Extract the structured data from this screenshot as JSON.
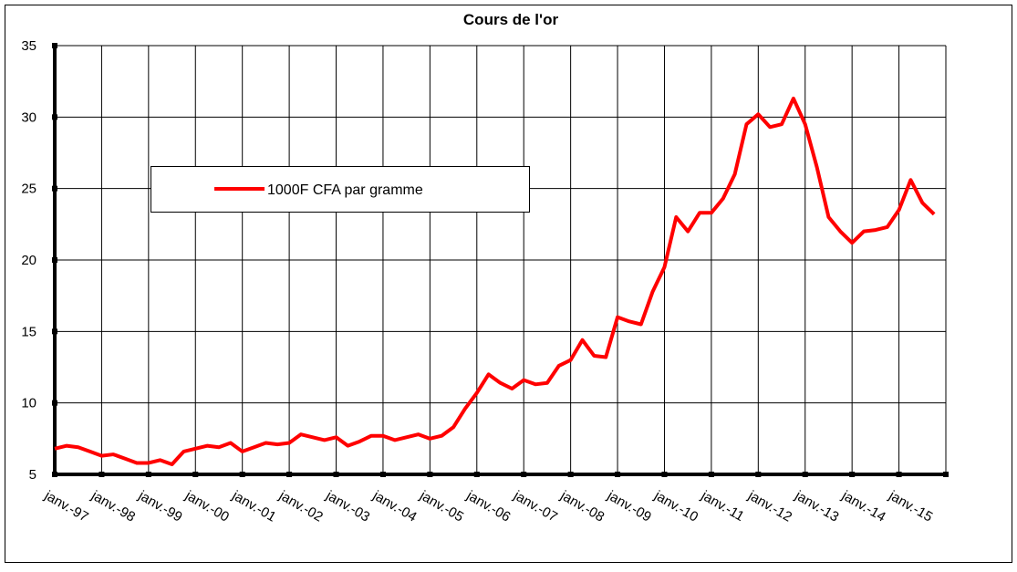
{
  "chart_data": {
    "type": "line",
    "title": "Cours de l'or",
    "categories": [
      "janv.-97",
      null,
      null,
      null,
      "janv.-98",
      null,
      null,
      null,
      "janv.-99",
      null,
      null,
      null,
      "janv.-00",
      null,
      null,
      null,
      "janv.-01",
      null,
      null,
      null,
      "janv.-02",
      null,
      null,
      null,
      "janv.-03",
      null,
      null,
      null,
      "janv.-04",
      null,
      null,
      null,
      "janv.-05",
      null,
      null,
      null,
      "janv.-06",
      null,
      null,
      null,
      "janv.-07",
      null,
      null,
      null,
      "janv.-08",
      null,
      null,
      null,
      "janv.-09",
      null,
      null,
      null,
      "janv.-10",
      null,
      null,
      null,
      "janv.-11",
      null,
      null,
      null,
      "janv.-12",
      null,
      null,
      null,
      "janv.-13",
      null,
      null,
      null,
      "janv.-14",
      null,
      null,
      null,
      "janv.-15",
      null,
      null,
      null
    ],
    "series": [
      {
        "name": "1000F CFA par gramme",
        "color": "#ff0000",
        "values": [
          6.8,
          7.0,
          6.9,
          6.6,
          6.3,
          6.4,
          6.1,
          5.8,
          5.8,
          6.0,
          5.7,
          6.6,
          6.8,
          7.0,
          6.9,
          7.2,
          6.6,
          6.9,
          7.2,
          7.1,
          7.2,
          7.8,
          7.6,
          7.4,
          7.6,
          7.0,
          7.3,
          7.7,
          7.7,
          7.4,
          7.6,
          7.8,
          7.5,
          7.7,
          8.3,
          9.6,
          10.7,
          12.0,
          11.4,
          11.0,
          11.6,
          11.3,
          11.4,
          12.6,
          13.0,
          14.4,
          13.3,
          13.2,
          16.0,
          15.7,
          15.5,
          17.8,
          19.5,
          23.0,
          22.0,
          23.3,
          23.3,
          24.3,
          26.0,
          29.5,
          30.2,
          29.3,
          29.5,
          31.3,
          29.5,
          26.5,
          23.0,
          22.0,
          21.2,
          22.0,
          22.1,
          22.3,
          23.5,
          25.6,
          24.0,
          23.2
        ]
      }
    ],
    "ylim": [
      5,
      35
    ],
    "yticks": [
      5,
      10,
      15,
      20,
      25,
      30,
      35
    ],
    "grid": true,
    "legend": "upper left"
  }
}
